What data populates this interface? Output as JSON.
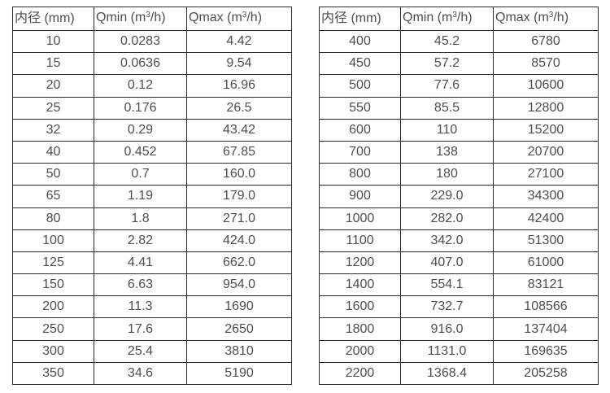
{
  "page": {
    "background_color": "#ffffff",
    "border_color": "#2b2b2b",
    "text_color": "#4d4d4d"
  },
  "tables": [
    {
      "id": "small-diameter-table",
      "header": {
        "diameter": "内径 (mm)",
        "qmin_prefix": "Qmin (m",
        "qmin_sup": "3",
        "qmin_suffix": "/h)",
        "qmax_prefix": "Qmax (m",
        "qmax_sup": "3",
        "qmax_suffix": "/h)"
      },
      "rows": [
        [
          "10",
          "0.0283",
          "4.42"
        ],
        [
          "15",
          "0.0636",
          "9.54"
        ],
        [
          "20",
          "0.12",
          "16.96"
        ],
        [
          "25",
          "0.176",
          "26.5"
        ],
        [
          "32",
          "0.29",
          "43.42"
        ],
        [
          "40",
          "0.452",
          "67.85"
        ],
        [
          "50",
          "0.7",
          "160.0"
        ],
        [
          "65",
          "1.19",
          "179.0"
        ],
        [
          "80",
          "1.8",
          "271.0"
        ],
        [
          "100",
          "2.82",
          "424.0"
        ],
        [
          "125",
          "4.41",
          "662.0"
        ],
        [
          "150",
          "6.63",
          "954.0"
        ],
        [
          "200",
          "11.3",
          "1690"
        ],
        [
          "250",
          "17.6",
          "2650"
        ],
        [
          "300",
          "25.4",
          "3810"
        ],
        [
          "350",
          "34.6",
          "5190"
        ]
      ]
    },
    {
      "id": "large-diameter-table",
      "header": {
        "diameter": "内径 (mm)",
        "qmin_prefix": "Qmin (m",
        "qmin_sup": "3",
        "qmin_suffix": "/h)",
        "qmax_prefix": "Qmax (m",
        "qmax_sup": "3",
        "qmax_suffix": "/h)"
      },
      "rows": [
        [
          "400",
          "45.2",
          "6780"
        ],
        [
          "450",
          "57.2",
          "8570"
        ],
        [
          "500",
          "77.6",
          "10600"
        ],
        [
          "550",
          "85.5",
          "12800"
        ],
        [
          "600",
          "110",
          "15200"
        ],
        [
          "700",
          "138",
          "20700"
        ],
        [
          "800",
          "180",
          "27100"
        ],
        [
          "900",
          "229.0",
          "34300"
        ],
        [
          "1000",
          "282.0",
          "42400"
        ],
        [
          "1100",
          "342.0",
          "51300"
        ],
        [
          "1200",
          "407.0",
          "61000"
        ],
        [
          "1400",
          "554.1",
          "83121"
        ],
        [
          "1600",
          "732.7",
          "108566"
        ],
        [
          "1800",
          "916.0",
          "137404"
        ],
        [
          "2000",
          "1131.0",
          "169635"
        ],
        [
          "2200",
          "1368.4",
          "205258"
        ]
      ]
    }
  ]
}
